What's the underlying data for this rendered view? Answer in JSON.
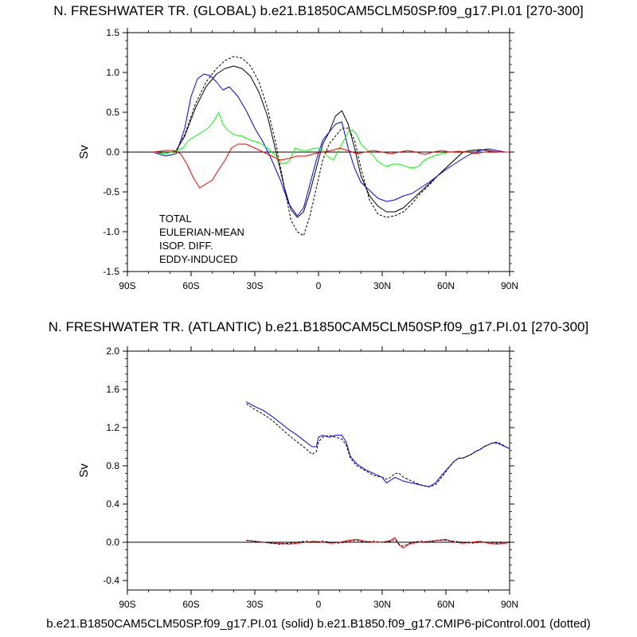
{
  "chart_data": [
    {
      "type": "line",
      "title": "N. FRESHWATER TR. (GLOBAL) b.e21.B1850CAM5CLM50SP.f09_g17.PI.01 [270-300]",
      "xlabel": "",
      "ylabel": "Sv",
      "xlim": [
        -90,
        90
      ],
      "ylim": [
        -1.5,
        1.5
      ],
      "x_ticks": [
        -90,
        -60,
        -30,
        0,
        30,
        60,
        90
      ],
      "x_tick_labels": [
        "90S",
        "60S",
        "30S",
        "0",
        "30N",
        "60N",
        "90N"
      ],
      "y_ticks": [
        -1.5,
        -1.0,
        -0.5,
        0.0,
        0.5,
        1.0,
        1.5
      ],
      "y_tick_labels": [
        "-1.5",
        "-1.0",
        "-0.5",
        "0.0",
        "0.5",
        "1.0",
        "1.5"
      ],
      "legend": [
        "TOTAL",
        "EULERIAN-MEAN",
        "ISOP. DIFF.",
        "EDDY-INDUCED"
      ],
      "legend_position": "lower-left",
      "series": [
        {
          "name": "TOTAL",
          "color": "#000000",
          "style": "solid",
          "x": [
            -78,
            -72,
            -67,
            -63,
            -58,
            -53,
            -48,
            -44,
            -40,
            -36,
            -32,
            -28,
            -24,
            -20,
            -16,
            -13,
            -10,
            -7,
            -4,
            -1,
            2,
            5,
            8,
            11,
            14,
            17,
            20,
            24,
            28,
            32,
            36,
            40,
            44,
            48,
            52,
            56,
            60,
            64,
            68,
            72,
            76,
            80,
            84,
            88
          ],
          "y": [
            0,
            -0.02,
            0.02,
            0.2,
            0.55,
            0.82,
            0.98,
            1.05,
            1.08,
            1.05,
            0.95,
            0.75,
            0.45,
            0.0,
            -0.45,
            -0.72,
            -0.82,
            -0.75,
            -0.5,
            -0.2,
            0.1,
            0.25,
            0.45,
            0.52,
            0.35,
            0.05,
            -0.3,
            -0.55,
            -0.68,
            -0.75,
            -0.75,
            -0.7,
            -0.6,
            -0.5,
            -0.4,
            -0.3,
            -0.2,
            -0.1,
            0,
            0.02,
            0.03,
            0.02,
            0,
            0
          ]
        },
        {
          "name": "TOTAL (control)",
          "color": "#000000",
          "style": "dotted",
          "x": [
            -78,
            -72,
            -67,
            -63,
            -58,
            -53,
            -48,
            -44,
            -40,
            -36,
            -32,
            -28,
            -24,
            -20,
            -16,
            -13,
            -10,
            -7,
            -4,
            -1,
            2,
            5,
            8,
            11,
            14,
            17,
            20,
            24,
            28,
            32,
            36,
            40,
            44,
            48,
            52,
            56,
            60,
            64,
            68,
            72,
            76,
            80,
            84,
            88
          ],
          "y": [
            0,
            -0.02,
            0.02,
            0.22,
            0.6,
            0.88,
            1.05,
            1.15,
            1.2,
            1.18,
            1.08,
            0.88,
            0.55,
            0.1,
            -0.45,
            -0.85,
            -1.0,
            -1.05,
            -0.8,
            -0.45,
            -0.1,
            0.1,
            0.2,
            0.3,
            0.3,
            0.15,
            -0.2,
            -0.6,
            -0.78,
            -0.82,
            -0.8,
            -0.75,
            -0.65,
            -0.52,
            -0.42,
            -0.3,
            -0.2,
            -0.1,
            0,
            0.02,
            0.03,
            0.02,
            0,
            0
          ]
        },
        {
          "name": "EULERIAN-MEAN",
          "color": "#0000ff",
          "style": "solid",
          "x": [
            -78,
            -72,
            -67,
            -63,
            -60,
            -57,
            -54,
            -51,
            -48,
            -45,
            -42,
            -38,
            -34,
            -30,
            -26,
            -22,
            -18,
            -14,
            -10,
            -7,
            -4,
            -1,
            2,
            5,
            8,
            11,
            14,
            17,
            20,
            24,
            28,
            32,
            36,
            40,
            44,
            48,
            52,
            56,
            60,
            64,
            68,
            72,
            76,
            80,
            84,
            88
          ],
          "y": [
            0,
            -0.05,
            -0.02,
            0.3,
            0.7,
            0.92,
            0.98,
            0.96,
            0.88,
            0.78,
            0.82,
            0.7,
            0.52,
            0.3,
            0.12,
            -0.1,
            -0.35,
            -0.65,
            -0.8,
            -0.7,
            -0.4,
            -0.1,
            0.15,
            0.25,
            0.35,
            0.38,
            0.05,
            -0.2,
            -0.38,
            -0.48,
            -0.58,
            -0.62,
            -0.6,
            -0.55,
            -0.52,
            -0.45,
            -0.38,
            -0.3,
            -0.22,
            -0.15,
            -0.08,
            -0.02,
            0.02,
            0.04,
            0.02,
            0
          ]
        },
        {
          "name": "ISOP. DIFF.",
          "color": "#00ff00",
          "style": "solid",
          "x": [
            -78,
            -72,
            -67,
            -64,
            -61,
            -58,
            -55,
            -52,
            -49,
            -47,
            -45,
            -43,
            -40,
            -36,
            -32,
            -28,
            -24,
            -20,
            -17,
            -14,
            -11,
            -8,
            -5,
            -2,
            1,
            4,
            7,
            10,
            12,
            14,
            16,
            18,
            20,
            22,
            24,
            26,
            28,
            30,
            32,
            35,
            38,
            41,
            44,
            47,
            50,
            54,
            58,
            62,
            66,
            70,
            74,
            78,
            82,
            86,
            90
          ],
          "y": [
            0,
            -0.02,
            0.02,
            0.05,
            0.15,
            0.2,
            0.25,
            0.3,
            0.4,
            0.5,
            0.35,
            0.28,
            0.22,
            0.2,
            0.15,
            0.12,
            0.05,
            -0.05,
            -0.15,
            -0.12,
            0.05,
            0.02,
            0.02,
            0.05,
            0.05,
            -0.05,
            -0.1,
            0.05,
            0.15,
            0.25,
            0.28,
            0.22,
            0.1,
            0.05,
            0.0,
            -0.05,
            -0.12,
            -0.15,
            -0.18,
            -0.15,
            -0.15,
            -0.18,
            -0.2,
            -0.18,
            -0.1,
            -0.05,
            -0.02,
            0.0,
            0.01,
            0.0,
            -0.01,
            0.0,
            0.01,
            0.0,
            0.0
          ]
        },
        {
          "name": "EDDY-INDUCED",
          "color": "#ff0000",
          "style": "solid",
          "x": [
            -78,
            -72,
            -68,
            -65,
            -62,
            -59,
            -56,
            -53,
            -50,
            -47,
            -44,
            -41,
            -38,
            -34,
            -30,
            -26,
            -22,
            -18,
            -14,
            -10,
            -6,
            -2,
            2,
            6,
            10,
            14,
            18,
            22,
            26,
            30,
            34,
            38,
            42,
            46,
            50,
            54,
            58,
            62,
            66,
            70,
            74,
            78,
            82,
            86,
            90
          ],
          "y": [
            0,
            0.02,
            0.02,
            -0.02,
            -0.15,
            -0.32,
            -0.45,
            -0.4,
            -0.35,
            -0.22,
            -0.1,
            0.05,
            0.1,
            0.1,
            0.05,
            0.0,
            -0.05,
            -0.1,
            -0.08,
            -0.05,
            -0.05,
            -0.02,
            0.0,
            0.02,
            0.05,
            0.02,
            -0.02,
            0.0,
            0.02,
            0.0,
            -0.02,
            0.0,
            0.02,
            0.0,
            -0.03,
            0.0,
            0.02,
            0.0,
            0.01,
            0.0,
            -0.02,
            0.0,
            0.01,
            0.0,
            0.0
          ]
        }
      ]
    },
    {
      "type": "line",
      "title": "N. FRESHWATER TR. (ATLANTIC) b.e21.B1850CAM5CLM50SP.f09_g17.PI.01 [270-300]",
      "xlabel": "",
      "ylabel": "Sv",
      "xlim": [
        -90,
        90
      ],
      "ylim": [
        -0.5,
        2.0
      ],
      "x_ticks": [
        -90,
        -60,
        -30,
        0,
        30,
        60,
        90
      ],
      "x_tick_labels": [
        "90S",
        "60S",
        "30S",
        "0",
        "30N",
        "60N",
        "90N"
      ],
      "y_ticks": [
        -0.4,
        0.0,
        0.4,
        0.8,
        1.2,
        1.6,
        2.0
      ],
      "y_tick_labels": [
        "-0.4",
        "0.0",
        "0.4",
        "0.8",
        "1.2",
        "1.6",
        "2.0"
      ],
      "series": [
        {
          "name": "EULERIAN-MEAN",
          "color": "#0000ff",
          "style": "solid",
          "x": [
            -34,
            -30,
            -26,
            -22,
            -18,
            -14,
            -10,
            -6,
            -3,
            -1,
            0,
            2,
            5,
            8,
            11,
            13,
            15,
            18,
            22,
            26,
            30,
            32,
            34,
            36,
            38,
            40,
            44,
            48,
            52,
            55,
            58,
            60,
            62,
            64,
            66,
            68,
            70,
            72,
            74,
            76,
            78,
            80,
            82,
            84,
            86,
            88,
            90
          ],
          "y": [
            1.47,
            1.42,
            1.38,
            1.32,
            1.25,
            1.18,
            1.12,
            1.05,
            1.0,
            1.0,
            1.1,
            1.12,
            1.1,
            1.12,
            1.12,
            1.05,
            0.9,
            0.82,
            0.76,
            0.72,
            0.68,
            0.62,
            0.65,
            0.68,
            0.66,
            0.64,
            0.62,
            0.6,
            0.58,
            0.62,
            0.7,
            0.75,
            0.8,
            0.85,
            0.88,
            0.88,
            0.9,
            0.92,
            0.95,
            0.97,
            1.0,
            1.02,
            1.04,
            1.04,
            1.02,
            1.0,
            0.98
          ]
        },
        {
          "name": "EULERIAN-MEAN (control)",
          "color": "#000000",
          "style": "dotted",
          "x": [
            -34,
            -30,
            -26,
            -22,
            -18,
            -14,
            -10,
            -6,
            -3,
            -1,
            0,
            2,
            5,
            8,
            11,
            13,
            15,
            18,
            22,
            26,
            30,
            32,
            34,
            36,
            38,
            40,
            44,
            48,
            52,
            55,
            58,
            60,
            62,
            64,
            66,
            68,
            70,
            72,
            74,
            76,
            78,
            80,
            82,
            84,
            86,
            88,
            90
          ],
          "y": [
            1.45,
            1.39,
            1.34,
            1.28,
            1.2,
            1.12,
            1.05,
            0.98,
            0.92,
            0.95,
            1.05,
            1.1,
            1.12,
            1.1,
            1.08,
            1.02,
            0.88,
            0.8,
            0.75,
            0.7,
            0.68,
            0.66,
            0.68,
            0.72,
            0.72,
            0.68,
            0.64,
            0.6,
            0.58,
            0.6,
            0.68,
            0.74,
            0.8,
            0.85,
            0.88,
            0.88,
            0.9,
            0.92,
            0.95,
            0.97,
            1.0,
            1.02,
            1.04,
            1.05,
            1.03,
            1.0,
            0.98
          ]
        },
        {
          "name": "EDDY-INDUCED",
          "color": "#ff0000",
          "style": "solid",
          "x": [
            -34,
            -30,
            -26,
            -22,
            -18,
            -14,
            -10,
            -6,
            -2,
            2,
            6,
            10,
            14,
            18,
            22,
            26,
            30,
            34,
            36,
            38,
            40,
            42,
            44,
            48,
            52,
            56,
            60,
            64,
            68,
            72,
            76,
            80,
            84,
            88,
            90
          ],
          "y": [
            0.02,
            0.01,
            0.0,
            -0.01,
            -0.01,
            -0.02,
            -0.01,
            0.0,
            0.01,
            0.0,
            -0.01,
            0.0,
            0.02,
            0.03,
            0.01,
            0.0,
            0.0,
            0.02,
            0.05,
            -0.03,
            -0.06,
            -0.03,
            -0.01,
            0.0,
            0.01,
            0.02,
            0.03,
            0.0,
            -0.01,
            0.0,
            0.01,
            -0.01,
            -0.02,
            -0.01,
            0.0
          ]
        },
        {
          "name": "EDDY-INDUCED (control)",
          "color": "#000000",
          "style": "dotted",
          "x": [
            -34,
            -30,
            -26,
            -22,
            -18,
            -14,
            -10,
            -6,
            -2,
            2,
            6,
            10,
            14,
            18,
            22,
            26,
            30,
            34,
            36,
            38,
            40,
            42,
            44,
            48,
            52,
            56,
            60,
            64,
            68,
            72,
            76,
            80,
            84,
            88,
            90
          ],
          "y": [
            0.02,
            0.01,
            0.0,
            -0.01,
            -0.02,
            -0.01,
            0.0,
            0.01,
            0.0,
            0.01,
            0.0,
            -0.01,
            0.01,
            0.02,
            0.0,
            0.01,
            0.0,
            0.01,
            0.03,
            -0.02,
            -0.04,
            -0.02,
            0.0,
            0.01,
            0.0,
            0.02,
            0.02,
            0.01,
            0.0,
            -0.01,
            0.0,
            0.0,
            -0.01,
            0.0,
            0.0
          ]
        }
      ]
    }
  ],
  "footer": "b.e21.B1850CAM5CLM50SP.f09_g17.PI.01 (solid) b.e21.B1850.f09_g17.CMIP6-piControl.001 (dotted)"
}
